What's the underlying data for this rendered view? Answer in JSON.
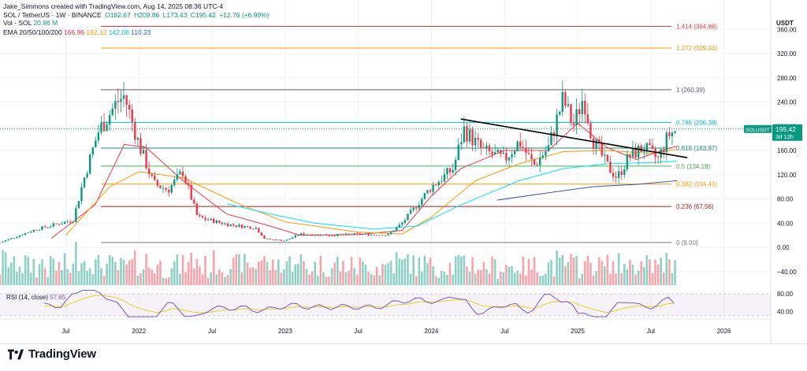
{
  "header": {
    "created_by": "Jake_Simmons created with TradingView.com, Aug 14, 2025 08:36 UTC-4",
    "symbol": "SOL / TetherUS · 1W · BINANCE",
    "open": "O182.67",
    "high": "H209.86",
    "low": "L173.43",
    "close": "C195.42",
    "change": "+12.76 (+6.99%)",
    "vol_label": "Vol · SOL",
    "vol_value": "20.96 M",
    "ema_label": "EMA 20/50/100/200",
    "ema20": "166.96",
    "ema50": "162.12",
    "ema100": "142.08",
    "ema200": "110.23"
  },
  "brand": {
    "name": "TradingView"
  },
  "colors": {
    "up": "#089981",
    "down": "#f23645",
    "ema20": "#f23645",
    "ema50": "#ff9800",
    "ema100": "#00e5ff",
    "ema200": "#3f51b5",
    "rsi": "#7e57c2",
    "rsi_ma": "#e9d21a",
    "fib_label": "#f23645"
  },
  "chart_data": {
    "type": "candlestick",
    "title": "SOL / TetherUS · 1W · BINANCE",
    "currency_label": "USDT",
    "price_ticks": [
      {
        "v": 360,
        "label": "360.00"
      },
      {
        "v": 320,
        "label": "320.00"
      },
      {
        "v": 280,
        "label": "280.00"
      },
      {
        "v": 240,
        "label": "240.00"
      },
      {
        "v": 200,
        "label": "200.00"
      },
      {
        "v": 160,
        "label": "160.00"
      },
      {
        "v": 120,
        "label": "120.00"
      },
      {
        "v": 80,
        "label": "80.00"
      },
      {
        "v": 40,
        "label": "40.00"
      },
      {
        "v": 0,
        "label": "0.00"
      },
      {
        "v": -40,
        "label": "−40.00"
      }
    ],
    "time_ticks": [
      {
        "t": 2021.5,
        "label": "Jul"
      },
      {
        "t": 2022.0,
        "label": "2022"
      },
      {
        "t": 2022.5,
        "label": "Jul"
      },
      {
        "t": 2023.0,
        "label": "2023"
      },
      {
        "t": 2023.5,
        "label": "Jul"
      },
      {
        "t": 2024.0,
        "label": "2024"
      },
      {
        "t": 2024.5,
        "label": "Jul"
      },
      {
        "t": 2025.0,
        "label": "2025"
      },
      {
        "t": 2025.5,
        "label": "Jul"
      },
      {
        "t": 2026.0,
        "label": "2026"
      }
    ],
    "x_range": [
      2021.05,
      2026.32
    ],
    "fib_levels": [
      {
        "ratio": 1.414,
        "price": 364.88,
        "label": "1.414 (364.88)",
        "color": "#f23645"
      },
      {
        "ratio": 1.272,
        "price": 329.04,
        "label": "1.272 (329.04)",
        "color": "#ff9800"
      },
      {
        "ratio": 1,
        "price": 260.39,
        "label": "1 (260.39)",
        "color": "#5d606b"
      },
      {
        "ratio": 0.786,
        "price": 206.38,
        "label": "0.786 (206.38)",
        "color": "#00bcd4"
      },
      {
        "ratio": 0.618,
        "price": 163.97,
        "label": "0.618 (163.97)",
        "color": "#138d75"
      },
      {
        "ratio": 0.5,
        "price": 134.19,
        "label": "0.5 (134.19)",
        "color": "#4caf50"
      },
      {
        "ratio": 0.382,
        "price": 104.41,
        "label": "0.382 (104.41)",
        "color": "#ff9800"
      },
      {
        "ratio": 0.236,
        "price": 67.56,
        "label": "0.236 (67.56)",
        "color": "#b71c1c"
      },
      {
        "ratio": 0,
        "price": 8.0,
        "label": "0 (8.00)",
        "color": "#787b86"
      }
    ],
    "price_tag": {
      "symbol": "SOLUSDT",
      "price": "195.42",
      "countdown": "3d 12h",
      "value": 195.42
    },
    "trendline": [
      {
        "t": 2024.2,
        "p": 212
      },
      {
        "t": 2025.75,
        "p": 148
      }
    ],
    "key_points": [
      {
        "t": 2021.05,
        "p": 8
      },
      {
        "t": 2021.3,
        "p": 30
      },
      {
        "t": 2021.55,
        "p": 45
      },
      {
        "t": 2021.62,
        "p": 110
      },
      {
        "t": 2021.72,
        "p": 190
      },
      {
        "t": 2021.85,
        "p": 240
      },
      {
        "t": 2021.9,
        "p": 250
      },
      {
        "t": 2022.0,
        "p": 170
      },
      {
        "t": 2022.1,
        "p": 105
      },
      {
        "t": 2022.2,
        "p": 95
      },
      {
        "t": 2022.3,
        "p": 125
      },
      {
        "t": 2022.4,
        "p": 50
      },
      {
        "t": 2022.6,
        "p": 38
      },
      {
        "t": 2022.8,
        "p": 32
      },
      {
        "t": 2022.86,
        "p": 14
      },
      {
        "t": 2023.0,
        "p": 11
      },
      {
        "t": 2023.1,
        "p": 22
      },
      {
        "t": 2023.3,
        "p": 20
      },
      {
        "t": 2023.5,
        "p": 22
      },
      {
        "t": 2023.7,
        "p": 20
      },
      {
        "t": 2023.8,
        "p": 40
      },
      {
        "t": 2023.9,
        "p": 70
      },
      {
        "t": 2024.0,
        "p": 100
      },
      {
        "t": 2024.15,
        "p": 130
      },
      {
        "t": 2024.22,
        "p": 195
      },
      {
        "t": 2024.35,
        "p": 160
      },
      {
        "t": 2024.5,
        "p": 145
      },
      {
        "t": 2024.6,
        "p": 175
      },
      {
        "t": 2024.7,
        "p": 135
      },
      {
        "t": 2024.8,
        "p": 165
      },
      {
        "t": 2024.9,
        "p": 245
      },
      {
        "t": 2024.97,
        "p": 200
      },
      {
        "t": 2025.04,
        "p": 250
      },
      {
        "t": 2025.1,
        "p": 180
      },
      {
        "t": 2025.2,
        "p": 135
      },
      {
        "t": 2025.27,
        "p": 115
      },
      {
        "t": 2025.35,
        "p": 150
      },
      {
        "t": 2025.45,
        "p": 165
      },
      {
        "t": 2025.55,
        "p": 145
      },
      {
        "t": 2025.62,
        "p": 185
      },
      {
        "t": 2025.68,
        "p": 195
      }
    ],
    "ema_series": [
      {
        "name": "EMA 20",
        "color": "#f23645",
        "points": [
          {
            "t": 2021.4,
            "p": 15
          },
          {
            "t": 2021.7,
            "p": 70
          },
          {
            "t": 2021.9,
            "p": 170
          },
          {
            "t": 2022.05,
            "p": 165
          },
          {
            "t": 2022.3,
            "p": 110
          },
          {
            "t": 2022.6,
            "p": 55
          },
          {
            "t": 2022.9,
            "p": 35
          },
          {
            "t": 2023.1,
            "p": 20
          },
          {
            "t": 2023.5,
            "p": 21
          },
          {
            "t": 2023.8,
            "p": 28
          },
          {
            "t": 2024.0,
            "p": 85
          },
          {
            "t": 2024.2,
            "p": 130
          },
          {
            "t": 2024.5,
            "p": 160
          },
          {
            "t": 2024.8,
            "p": 160
          },
          {
            "t": 2025.0,
            "p": 205
          },
          {
            "t": 2025.2,
            "p": 165
          },
          {
            "t": 2025.4,
            "p": 145
          },
          {
            "t": 2025.6,
            "p": 162
          },
          {
            "t": 2025.68,
            "p": 167
          }
        ]
      },
      {
        "name": "EMA 50",
        "color": "#ff9800",
        "points": [
          {
            "t": 2021.5,
            "p": 20
          },
          {
            "t": 2021.8,
            "p": 100
          },
          {
            "t": 2022.0,
            "p": 125
          },
          {
            "t": 2022.3,
            "p": 115
          },
          {
            "t": 2022.7,
            "p": 70
          },
          {
            "t": 2023.0,
            "p": 42
          },
          {
            "t": 2023.5,
            "p": 25
          },
          {
            "t": 2023.8,
            "p": 22
          },
          {
            "t": 2024.0,
            "p": 50
          },
          {
            "t": 2024.3,
            "p": 110
          },
          {
            "t": 2024.6,
            "p": 138
          },
          {
            "t": 2024.9,
            "p": 158
          },
          {
            "t": 2025.2,
            "p": 160
          },
          {
            "t": 2025.5,
            "p": 155
          },
          {
            "t": 2025.68,
            "p": 162
          }
        ]
      },
      {
        "name": "EMA 100",
        "color": "#00e5ff",
        "points": [
          {
            "t": 2022.6,
            "p": 72
          },
          {
            "t": 2022.9,
            "p": 55
          },
          {
            "t": 2023.2,
            "p": 40
          },
          {
            "t": 2023.6,
            "p": 30
          },
          {
            "t": 2023.9,
            "p": 35
          },
          {
            "t": 2024.2,
            "p": 70
          },
          {
            "t": 2024.6,
            "p": 110
          },
          {
            "t": 2024.9,
            "p": 130
          },
          {
            "t": 2025.2,
            "p": 138
          },
          {
            "t": 2025.5,
            "p": 140
          },
          {
            "t": 2025.68,
            "p": 142
          }
        ]
      },
      {
        "name": "EMA 200",
        "color": "#3f51b5",
        "points": [
          {
            "t": 2024.45,
            "p": 78
          },
          {
            "t": 2024.8,
            "p": 90
          },
          {
            "t": 2025.1,
            "p": 100
          },
          {
            "t": 2025.4,
            "p": 104
          },
          {
            "t": 2025.68,
            "p": 110
          }
        ]
      }
    ],
    "rsi": {
      "label": "RSI (14, close)",
      "value": "57.65",
      "ticks": [
        {
          "v": 80,
          "label": "80.00"
        },
        {
          "v": 40,
          "label": "40.00"
        }
      ]
    }
  }
}
